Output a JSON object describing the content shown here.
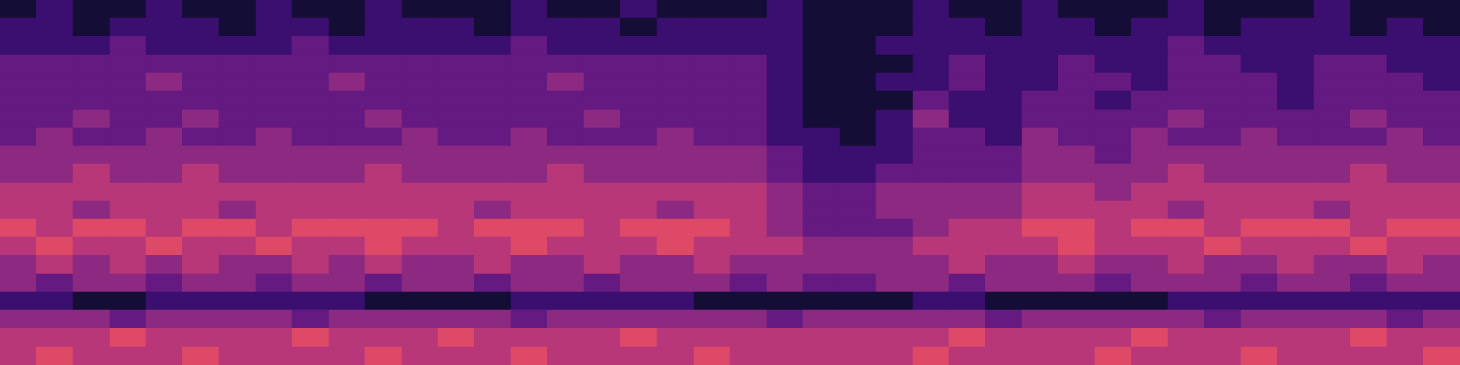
{
  "chart_data": {
    "type": "heatmap",
    "tick_labels": false,
    "zlim": [
      0,
      9
    ],
    "cells": [
      [
        1,
        2,
        1,
        1,
        2,
        1,
        1,
        2,
        1,
        1,
        2,
        1,
        1,
        1,
        2,
        1,
        1,
        2,
        1,
        1,
        1,
        2,
        1,
        1,
        1,
        2,
        1,
        1,
        2,
        1,
        1,
        1,
        2,
        1,
        1,
        1,
        2,
        1,
        1,
        1
      ],
      [
        2,
        2,
        1,
        2,
        2,
        2,
        1,
        2,
        2,
        1,
        2,
        2,
        2,
        1,
        2,
        2,
        2,
        1,
        2,
        2,
        2,
        2,
        1,
        1,
        1,
        2,
        2,
        1,
        2,
        2,
        1,
        2,
        2,
        1,
        2,
        2,
        2,
        1,
        2,
        1
      ],
      [
        2,
        2,
        2,
        3,
        2,
        2,
        2,
        2,
        3,
        2,
        2,
        2,
        2,
        2,
        3,
        2,
        2,
        2,
        2,
        2,
        2,
        2,
        1,
        1,
        2,
        2,
        2,
        2,
        2,
        2,
        2,
        2,
        3,
        2,
        2,
        2,
        2,
        2,
        2,
        2
      ],
      [
        3,
        3,
        3,
        3,
        3,
        3,
        3,
        3,
        3,
        3,
        3,
        3,
        3,
        3,
        3,
        3,
        3,
        3,
        3,
        3,
        3,
        2,
        1,
        1,
        1,
        2,
        3,
        2,
        2,
        3,
        2,
        2,
        3,
        3,
        2,
        2,
        3,
        3,
        2,
        2
      ],
      [
        3,
        3,
        3,
        3,
        4,
        3,
        3,
        3,
        3,
        4,
        3,
        3,
        3,
        3,
        3,
        4,
        3,
        3,
        3,
        3,
        3,
        2,
        1,
        1,
        2,
        2,
        3,
        2,
        2,
        3,
        3,
        2,
        3,
        3,
        3,
        2,
        3,
        3,
        3,
        2
      ],
      [
        3,
        3,
        3,
        3,
        3,
        3,
        3,
        3,
        3,
        3,
        3,
        3,
        3,
        3,
        3,
        3,
        3,
        3,
        3,
        3,
        3,
        2,
        1,
        1,
        1,
        3,
        2,
        2,
        3,
        3,
        2,
        3,
        3,
        3,
        3,
        2,
        3,
        3,
        3,
        3
      ],
      [
        3,
        3,
        4,
        3,
        3,
        4,
        3,
        3,
        3,
        3,
        4,
        3,
        3,
        3,
        3,
        3,
        4,
        3,
        3,
        3,
        3,
        2,
        1,
        1,
        2,
        4,
        2,
        2,
        3,
        3,
        3,
        3,
        4,
        3,
        3,
        3,
        3,
        4,
        3,
        3
      ],
      [
        3,
        4,
        3,
        3,
        4,
        3,
        3,
        4,
        3,
        3,
        3,
        4,
        3,
        3,
        4,
        3,
        3,
        3,
        4,
        3,
        3,
        2,
        2,
        1,
        2,
        3,
        3,
        2,
        4,
        3,
        3,
        4,
        3,
        3,
        4,
        3,
        3,
        3,
        4,
        3
      ],
      [
        4,
        4,
        4,
        4,
        4,
        4,
        4,
        4,
        4,
        4,
        4,
        4,
        4,
        4,
        4,
        4,
        4,
        4,
        4,
        4,
        4,
        3,
        2,
        2,
        2,
        3,
        3,
        3,
        4,
        4,
        3,
        4,
        4,
        4,
        4,
        4,
        4,
        4,
        4,
        4
      ],
      [
        4,
        4,
        5,
        4,
        4,
        5,
        4,
        4,
        4,
        4,
        5,
        4,
        4,
        4,
        4,
        5,
        4,
        4,
        4,
        4,
        4,
        3,
        2,
        2,
        3,
        3,
        3,
        3,
        4,
        4,
        4,
        4,
        5,
        4,
        4,
        4,
        4,
        5,
        4,
        4
      ],
      [
        5,
        5,
        5,
        5,
        5,
        5,
        5,
        5,
        5,
        5,
        5,
        5,
        5,
        5,
        5,
        5,
        5,
        5,
        5,
        5,
        5,
        4,
        3,
        3,
        4,
        4,
        4,
        4,
        5,
        5,
        4,
        5,
        5,
        5,
        5,
        5,
        5,
        5,
        5,
        5
      ],
      [
        5,
        5,
        4,
        5,
        5,
        5,
        4,
        5,
        5,
        5,
        5,
        5,
        5,
        4,
        5,
        5,
        5,
        5,
        4,
        5,
        5,
        4,
        3,
        3,
        4,
        4,
        4,
        4,
        5,
        5,
        5,
        5,
        4,
        5,
        5,
        5,
        4,
        5,
        5,
        5
      ],
      [
        6,
        5,
        6,
        6,
        5,
        6,
        6,
        5,
        6,
        6,
        6,
        6,
        5,
        6,
        6,
        6,
        5,
        6,
        6,
        6,
        5,
        4,
        3,
        3,
        3,
        4,
        5,
        5,
        6,
        6,
        5,
        6,
        6,
        5,
        6,
        6,
        6,
        5,
        6,
        6
      ],
      [
        5,
        6,
        5,
        5,
        6,
        5,
        5,
        6,
        5,
        5,
        6,
        5,
        5,
        5,
        6,
        5,
        5,
        5,
        6,
        5,
        5,
        5,
        4,
        4,
        4,
        5,
        5,
        5,
        5,
        6,
        5,
        5,
        5,
        6,
        5,
        5,
        5,
        6,
        5,
        5
      ],
      [
        4,
        5,
        4,
        5,
        4,
        5,
        4,
        4,
        5,
        4,
        5,
        4,
        4,
        5,
        4,
        4,
        5,
        4,
        4,
        5,
        4,
        4,
        4,
        4,
        4,
        4,
        5,
        4,
        4,
        5,
        4,
        4,
        5,
        4,
        4,
        5,
        4,
        4,
        5,
        4
      ],
      [
        4,
        3,
        4,
        4,
        3,
        4,
        4,
        3,
        4,
        4,
        3,
        4,
        4,
        3,
        4,
        4,
        3,
        4,
        4,
        4,
        3,
        4,
        3,
        3,
        4,
        4,
        3,
        4,
        4,
        4,
        3,
        4,
        4,
        4,
        3,
        4,
        4,
        3,
        4,
        4
      ],
      [
        2,
        2,
        1,
        1,
        2,
        2,
        2,
        2,
        2,
        2,
        1,
        1,
        1,
        1,
        2,
        2,
        2,
        2,
        2,
        1,
        1,
        1,
        1,
        1,
        1,
        2,
        2,
        1,
        1,
        1,
        1,
        1,
        2,
        2,
        2,
        2,
        2,
        2,
        2,
        2
      ],
      [
        4,
        4,
        4,
        3,
        4,
        4,
        4,
        4,
        3,
        4,
        4,
        4,
        4,
        4,
        3,
        4,
        4,
        4,
        4,
        4,
        4,
        3,
        4,
        4,
        4,
        4,
        4,
        3,
        4,
        4,
        4,
        4,
        4,
        3,
        4,
        4,
        4,
        4,
        3,
        4
      ],
      [
        5,
        5,
        5,
        6,
        5,
        5,
        5,
        5,
        6,
        5,
        5,
        5,
        6,
        5,
        5,
        5,
        5,
        6,
        5,
        5,
        5,
        5,
        5,
        5,
        5,
        5,
        6,
        5,
        5,
        5,
        5,
        6,
        5,
        5,
        5,
        5,
        5,
        6,
        5,
        5
      ],
      [
        5,
        6,
        5,
        5,
        5,
        6,
        5,
        5,
        5,
        5,
        6,
        5,
        5,
        5,
        6,
        5,
        5,
        5,
        5,
        6,
        5,
        5,
        5,
        5,
        5,
        6,
        5,
        5,
        5,
        5,
        6,
        5,
        5,
        5,
        6,
        5,
        5,
        5,
        5,
        6
      ]
    ]
  }
}
